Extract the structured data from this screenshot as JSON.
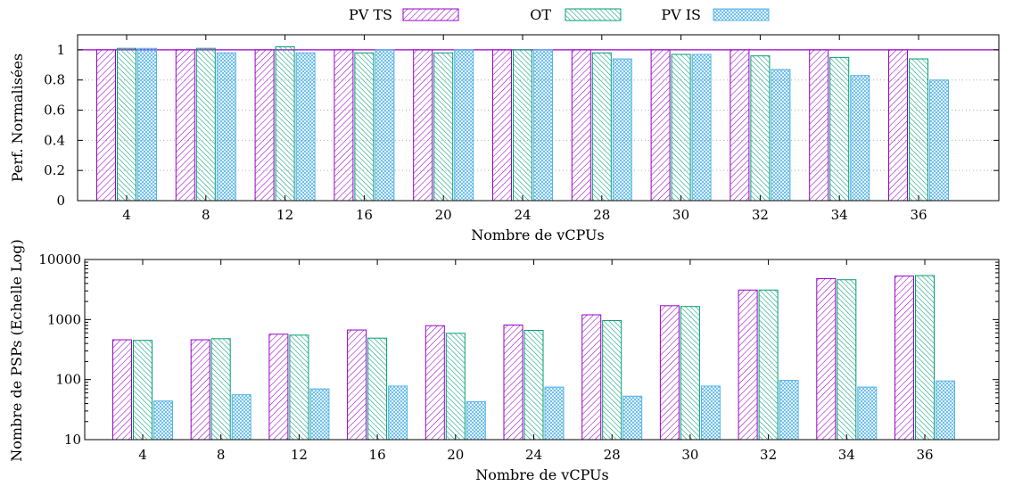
{
  "chart_data": [
    {
      "type": "bar",
      "ylabel": "Perf. Normalisées",
      "xlabel": "Nombre de vCPUs",
      "categories": [
        "4",
        "8",
        "12",
        "16",
        "20",
        "24",
        "28",
        "30",
        "32",
        "34",
        "36"
      ],
      "ylim": [
        0,
        1.1
      ],
      "yticks": [
        "0",
        "0.2",
        "0.4",
        "0.6",
        "0.8",
        "1"
      ],
      "reference_line": 1,
      "grid": true,
      "legend": "top-center",
      "series": [
        {
          "name": "PV TS",
          "color": "#9a00c8",
          "pattern": "diag-right",
          "values": [
            1,
            1,
            1,
            1,
            1,
            1,
            1,
            1,
            1,
            1,
            1
          ]
        },
        {
          "name": "OT",
          "color": "#009e73",
          "pattern": "diag-dense",
          "values": [
            1.01,
            1.01,
            1.02,
            0.98,
            0.98,
            1.0,
            0.98,
            0.97,
            0.96,
            0.95,
            0.94
          ]
        },
        {
          "name": "PV IS",
          "color": "#56b4e9",
          "pattern": "crosshatch",
          "values": [
            1.01,
            0.98,
            0.98,
            1.0,
            1.0,
            1.0,
            0.94,
            0.97,
            0.87,
            0.83,
            0.8
          ]
        }
      ]
    },
    {
      "type": "bar",
      "ylabel": "Nombre de PSPs (Echelle Log)",
      "xlabel": "Nombre de vCPUs",
      "categories": [
        "4",
        "8",
        "12",
        "16",
        "20",
        "24",
        "28",
        "30",
        "32",
        "34",
        "36"
      ],
      "scale": "log",
      "ylim": [
        10,
        10000
      ],
      "yticks": [
        "10",
        "100",
        "1000",
        "10000"
      ],
      "grid": false,
      "series": [
        {
          "name": "PV TS",
          "color": "#9a00c8",
          "pattern": "diag-right",
          "values": [
            460,
            460,
            570,
            670,
            790,
            810,
            1200,
            1700,
            3100,
            4800,
            5300
          ]
        },
        {
          "name": "OT",
          "color": "#009e73",
          "pattern": "diag-dense",
          "values": [
            450,
            480,
            550,
            490,
            590,
            660,
            960,
            1650,
            3100,
            4600,
            5400
          ]
        },
        {
          "name": "PV IS",
          "color": "#56b4e9",
          "pattern": "crosshatch",
          "values": [
            44,
            56,
            70,
            78,
            43,
            75,
            53,
            78,
            97,
            75,
            95
          ]
        }
      ]
    }
  ]
}
